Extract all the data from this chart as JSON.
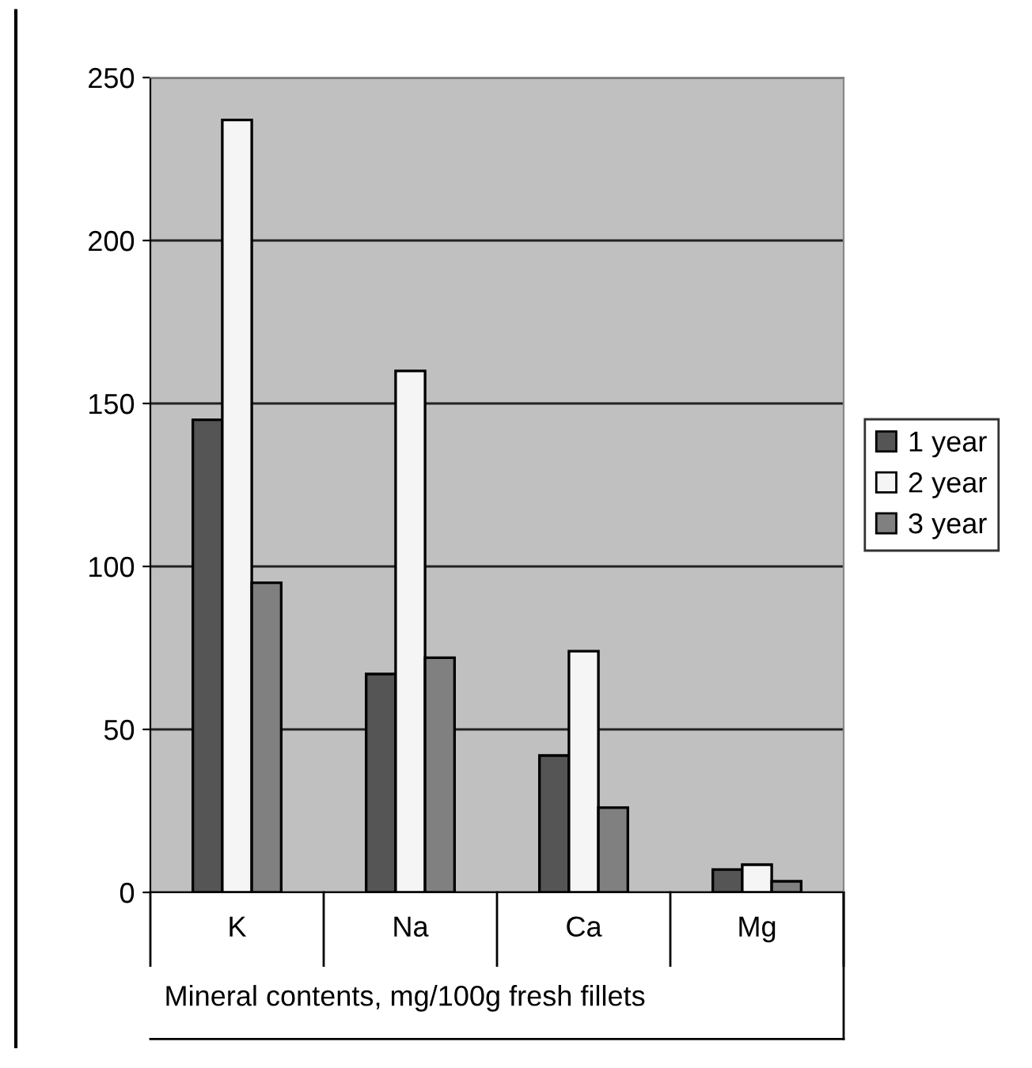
{
  "chart_data": {
    "type": "bar",
    "xlabel": "Mineral contents, mg/100g fresh fillets",
    "categories": [
      "K",
      "Na",
      "Ca",
      "Mg"
    ],
    "series": [
      {
        "name": "1 year",
        "color": "#555555",
        "values": [
          145,
          67,
          42,
          7
        ]
      },
      {
        "name": "2 year",
        "color": "#f5f5f5",
        "values": [
          237,
          160,
          74,
          8.5
        ]
      },
      {
        "name": "3 year",
        "color": "#808080",
        "values": [
          95,
          72,
          26,
          3.4
        ]
      }
    ],
    "ylim": [
      0,
      250
    ],
    "yticks": [
      0,
      50,
      100,
      150,
      200,
      250
    ],
    "grid": "y",
    "legend": "right"
  }
}
